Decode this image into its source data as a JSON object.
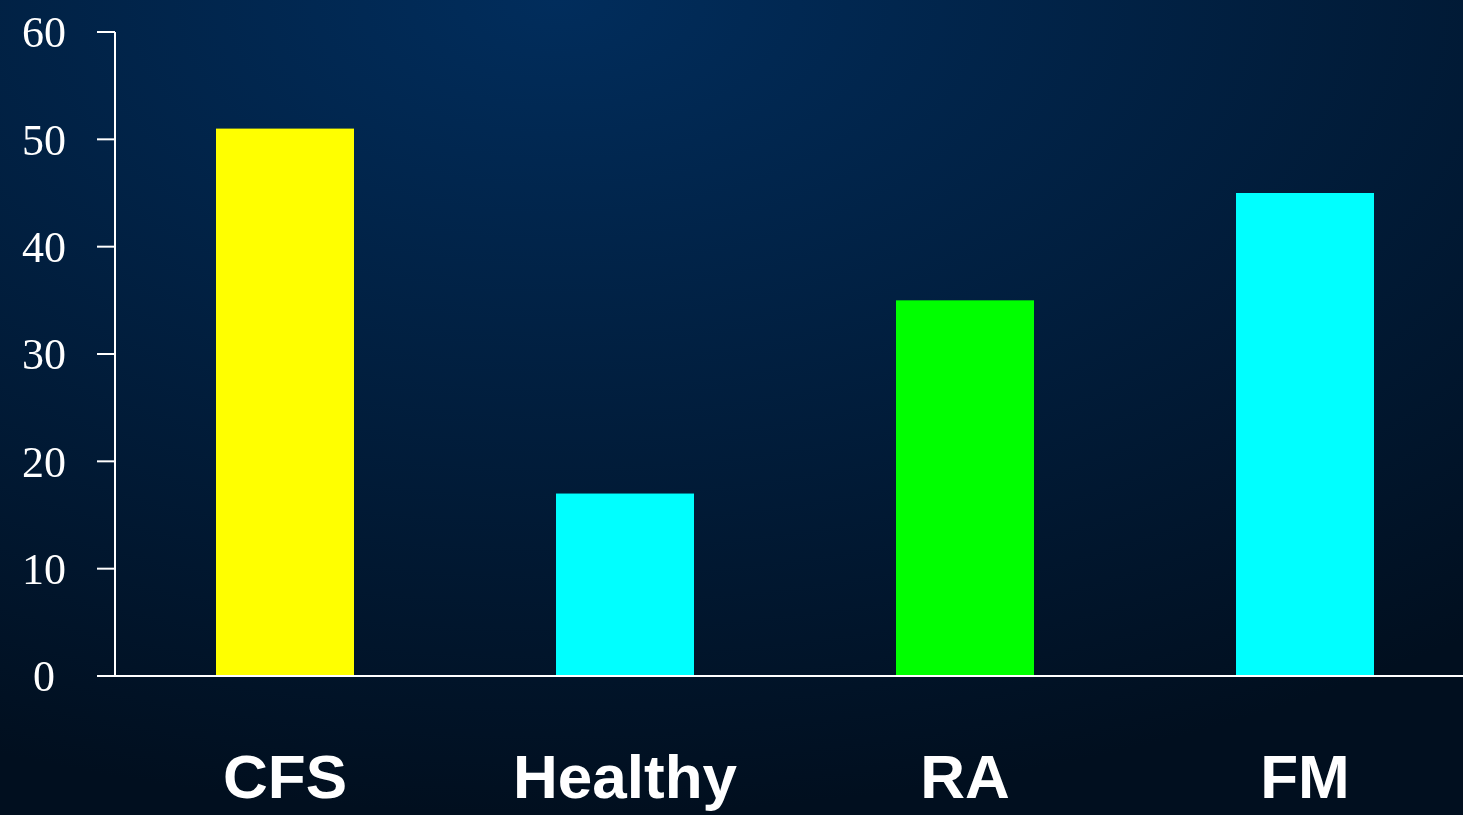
{
  "chart_data": {
    "type": "bar",
    "categories": [
      "CFS",
      "Healthy",
      "RA",
      "FM"
    ],
    "values": [
      51,
      17,
      35,
      45
    ],
    "colors": [
      "#ffff00",
      "#00ffff",
      "#00ff00",
      "#00ffff"
    ],
    "ylim": [
      0,
      60
    ],
    "yticks": [
      0,
      10,
      20,
      30,
      40,
      50,
      60
    ],
    "grid": false
  }
}
